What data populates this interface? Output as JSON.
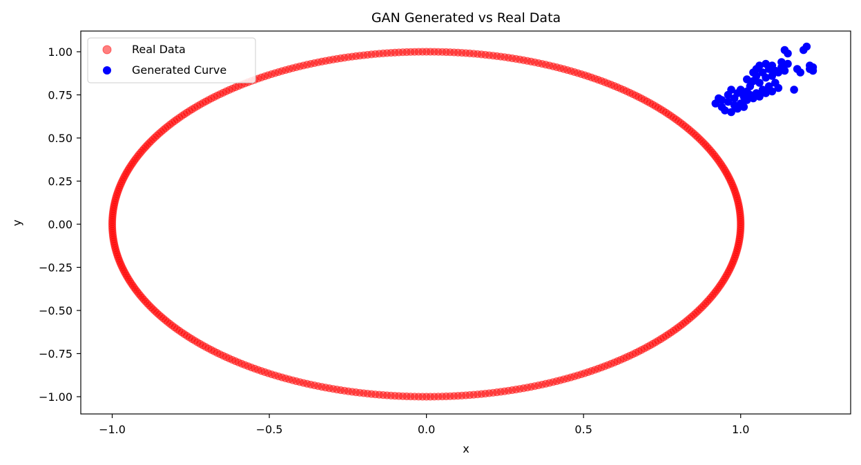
{
  "chart_data": {
    "type": "scatter",
    "title": "GAN Generated vs Real Data",
    "xlabel": "x",
    "ylabel": "y",
    "xlim": [
      -1.1,
      1.35
    ],
    "ylim": [
      -1.1,
      1.12
    ],
    "x_ticks": [
      -1.0,
      -0.5,
      0.0,
      0.5,
      1.0
    ],
    "x_tick_labels": [
      "−1.0",
      "−0.5",
      "0.0",
      "0.5",
      "1.0"
    ],
    "y_ticks": [
      1.0,
      0.75,
      0.5,
      0.25,
      0.0,
      -0.25,
      -0.5,
      -0.75,
      -1.0
    ],
    "y_tick_labels": [
      "1.00",
      "0.75",
      "0.50",
      "0.25",
      "0.00",
      "−0.25",
      "−0.50",
      "−0.75",
      "−1.00"
    ],
    "grid": false,
    "legend_position": "upper-left",
    "series": [
      {
        "name": "Real Data",
        "color": "#ff0000",
        "alpha": 0.5,
        "shape": "circle; x = cos(t), y = sin(t), t evenly spaced",
        "count": 500
      },
      {
        "name": "Generated Curve",
        "color": "#0000ff",
        "alpha": 1.0,
        "points": [
          [
            0.92,
            0.7
          ],
          [
            0.93,
            0.73
          ],
          [
            0.94,
            0.68
          ],
          [
            0.95,
            0.66
          ],
          [
            0.96,
            0.71
          ],
          [
            0.96,
            0.75
          ],
          [
            0.97,
            0.65
          ],
          [
            0.97,
            0.78
          ],
          [
            0.98,
            0.69
          ],
          [
            0.98,
            0.73
          ],
          [
            0.99,
            0.67
          ],
          [
            0.99,
            0.76
          ],
          [
            1.0,
            0.7
          ],
          [
            1.0,
            0.78
          ],
          [
            1.01,
            0.68
          ],
          [
            1.01,
            0.74
          ],
          [
            1.02,
            0.72
          ],
          [
            1.02,
            0.77
          ],
          [
            1.03,
            0.75
          ],
          [
            1.03,
            0.8
          ],
          [
            1.04,
            0.73
          ],
          [
            1.04,
            0.83
          ],
          [
            1.05,
            0.76
          ],
          [
            1.05,
            0.86
          ],
          [
            1.05,
            0.9
          ],
          [
            1.06,
            0.74
          ],
          [
            1.06,
            0.82
          ],
          [
            1.06,
            0.92
          ],
          [
            1.07,
            0.78
          ],
          [
            1.07,
            0.88
          ],
          [
            1.08,
            0.76
          ],
          [
            1.08,
            0.85
          ],
          [
            1.08,
            0.93
          ],
          [
            1.09,
            0.8
          ],
          [
            1.09,
            0.9
          ],
          [
            1.1,
            0.77
          ],
          [
            1.1,
            0.86
          ],
          [
            1.1,
            0.92
          ],
          [
            1.11,
            0.82
          ],
          [
            1.11,
            0.89
          ],
          [
            1.12,
            0.79
          ],
          [
            1.12,
            0.88
          ],
          [
            1.13,
            0.91
          ],
          [
            1.13,
            0.94
          ],
          [
            1.14,
            0.89
          ],
          [
            1.14,
            1.01
          ],
          [
            1.15,
            0.93
          ],
          [
            1.15,
            0.99
          ],
          [
            1.17,
            0.78
          ],
          [
            1.18,
            0.9
          ],
          [
            1.19,
            0.88
          ],
          [
            1.2,
            1.01
          ],
          [
            1.21,
            1.03
          ],
          [
            1.22,
            0.9
          ],
          [
            1.22,
            0.92
          ],
          [
            1.23,
            0.89
          ],
          [
            1.23,
            0.91
          ],
          [
            0.94,
            0.72
          ],
          [
            1.02,
            0.84
          ],
          [
            1.04,
            0.88
          ]
        ]
      }
    ]
  }
}
